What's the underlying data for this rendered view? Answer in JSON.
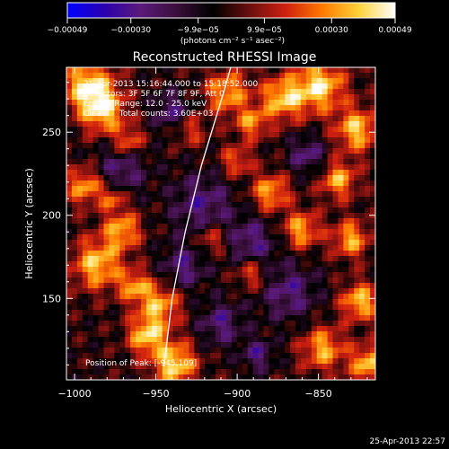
{
  "colors": {
    "background": "#000000",
    "foreground": "#ffffff",
    "colormap": [
      "#0000ff",
      "#2a00b0",
      "#5a1a7a",
      "#3b0f3b",
      "#000000",
      "#6a0f0f",
      "#d02010",
      "#ff7a00",
      "#ffd23a",
      "#ffffff"
    ]
  },
  "colorbar": {
    "tick_labels": [
      "−0.00049",
      "−0.00030",
      "−9.9e−05",
      "9.9e−05",
      "0.00030",
      "0.00049"
    ],
    "unit_label": "(photons cm⁻² s⁻¹ asec⁻²)"
  },
  "chart_data": {
    "type": "heatmap",
    "title": "Reconstructed RHESSI Image",
    "xlabel": "Heliocentric X (arcsec)",
    "ylabel": "Heliocentric Y (arcsec)",
    "xlim": [
      -1005,
      -815
    ],
    "ylim": [
      101,
      289
    ],
    "x_ticks": [
      -1000,
      -950,
      -900,
      -850
    ],
    "x_tick_labels": [
      "−1000",
      "−950",
      "−900",
      "−850"
    ],
    "y_ticks": [
      150,
      200,
      250
    ],
    "y_tick_labels": [
      "150",
      "200",
      "250"
    ],
    "value_range": [
      -0.00049,
      0.00049
    ],
    "limb_curve": [
      [
        -945,
        109
      ],
      [
        -940,
        150
      ],
      [
        -932,
        190
      ],
      [
        -922,
        230
      ],
      [
        -908,
        275
      ],
      [
        -904,
        289
      ]
    ],
    "annotations": [
      "25-Apr-2013 15:16:44.000 to 15:18:52.000",
      "Detectors: 3F 5F 6F 7F 8F 9F, Att 0",
      "Energy Range: 12.0 - 25.0 keV",
      "Clean     Total counts: 3.60E+03"
    ],
    "position_label": "Position of Peak: [-945,109]"
  },
  "footer": {
    "timestamp": "25-Apr-2013 22:57"
  }
}
